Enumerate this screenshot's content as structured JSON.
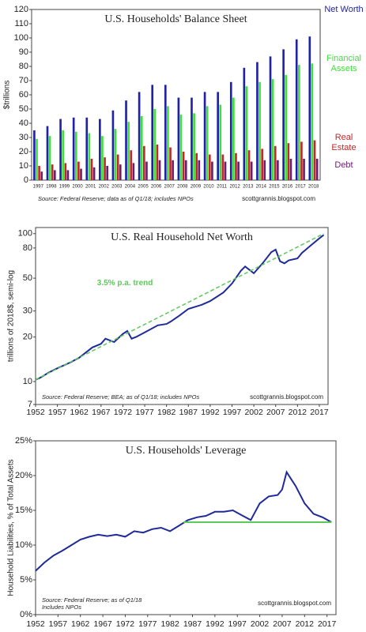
{
  "chart_data": [
    {
      "type": "bar",
      "title": "U.S. Households' Balance Sheet",
      "y_label": "$trillions",
      "source": "Source: Federal Reserve; data as of Q1/18; includes NPOs",
      "credit": "scottgrannis.blogspot.com",
      "categories": [
        "1997",
        "1998",
        "1999",
        "2000",
        "2001",
        "2002",
        "2003",
        "2004",
        "2005",
        "2006",
        "2007",
        "2008",
        "2009",
        "2010",
        "2011",
        "2012",
        "2013",
        "2014",
        "2015",
        "2016",
        "2017",
        "2018"
      ],
      "series": [
        {
          "name": "Net Worth",
          "color": "#1f22a8",
          "values": [
            35,
            38,
            43,
            44,
            44,
            43,
            49,
            56,
            62,
            67,
            67,
            58,
            58,
            62,
            62,
            69,
            79,
            83,
            87,
            92,
            99,
            101
          ]
        },
        {
          "name": "Financial Assets",
          "color": "#3ee03a",
          "values": [
            29,
            31,
            35,
            34,
            33,
            31,
            36,
            41,
            45,
            50,
            52,
            46,
            47,
            52,
            53,
            58,
            66,
            69,
            71,
            74,
            81,
            82
          ]
        },
        {
          "name": "Real Estate",
          "color": "#c0282a",
          "values": [
            10,
            11,
            12,
            13,
            15,
            16,
            18,
            21,
            24,
            25,
            23,
            20,
            19,
            18,
            18,
            19,
            21,
            22,
            24,
            26,
            27,
            28
          ]
        },
        {
          "name": "Debt",
          "color": "#6a1f6e",
          "values": [
            6,
            7,
            7,
            8,
            9,
            10,
            11,
            12,
            13,
            14,
            14,
            14,
            14,
            13,
            13,
            13,
            13,
            14,
            14,
            15,
            15,
            15
          ]
        }
      ],
      "legend": "right",
      "ylim": [
        0,
        120
      ],
      "yticks": [
        0,
        10,
        20,
        30,
        40,
        50,
        60,
        70,
        80,
        90,
        100,
        110,
        120
      ]
    },
    {
      "type": "line",
      "title": "U.S. Real Household Net Worth",
      "y_label": "trillions of 2018$, semi-log",
      "source": "Source: Federal Reserve; BEA; as of Q1/18; includes NPOs",
      "credit": "scottgrannis.blogspot.com",
      "yscale": "log",
      "xlim": [
        1952,
        2019
      ],
      "ylim": [
        7,
        110
      ],
      "xticks": [
        1952,
        1957,
        1962,
        1967,
        1972,
        1977,
        1982,
        1987,
        1992,
        1997,
        2002,
        2007,
        2012,
        2017
      ],
      "yticks": [
        7,
        10,
        20,
        30,
        50,
        80,
        100
      ],
      "series": [
        {
          "color": "#1f2a9a",
          "x": [
            1952,
            1953,
            1955,
            1957,
            1960,
            1962,
            1965,
            1967,
            1968,
            1970,
            1972,
            1973,
            1974,
            1975,
            1977,
            1980,
            1982,
            1983,
            1985,
            1987,
            1990,
            1992,
            1995,
            1997,
            1999,
            2000,
            2002,
            2004,
            2006,
            2007,
            2008,
            2009,
            2010,
            2012,
            2013,
            2015,
            2017,
            2018
          ],
          "values": [
            10.3,
            10.6,
            11.5,
            12.3,
            13.5,
            14.5,
            17,
            18,
            19.5,
            18.5,
            21,
            22,
            19.5,
            20,
            21.5,
            24,
            24.5,
            25.5,
            28,
            31,
            33,
            35,
            40,
            46,
            56,
            60,
            54,
            63,
            75,
            78,
            65,
            63,
            66,
            68,
            74,
            83,
            93,
            98
          ]
        },
        {
          "name": "3.5% p.a. trend",
          "color": "#5fc85a",
          "dashed": true,
          "x": [
            1952,
            2018
          ],
          "values": [
            10.3,
            100
          ]
        }
      ]
    },
    {
      "type": "line",
      "title": "U.S. Households' Leverage",
      "y_label": "Household Liabilities, % of Total Assets",
      "source": "Source: Federal Reserve; as of Q1/18",
      "source2": "Includes NPOs",
      "credit": "scottgrannis.blogspot.com",
      "xlim": [
        1952,
        2019
      ],
      "ylim": [
        0,
        25
      ],
      "xticks": [
        1952,
        1957,
        1962,
        1967,
        1972,
        1977,
        1982,
        1987,
        1992,
        1997,
        2002,
        2007,
        2012,
        2017
      ],
      "yticks": [
        {
          "value": 0,
          "label": "0%"
        },
        {
          "value": 5,
          "label": "5%"
        },
        {
          "value": 10,
          "label": "10%"
        },
        {
          "value": 15,
          "label": "15%"
        },
        {
          "value": 20,
          "label": "20%"
        },
        {
          "value": 25,
          "label": "25%"
        }
      ],
      "series": [
        {
          "color": "#1f2a9a",
          "x": [
            1952,
            1954,
            1956,
            1958,
            1960,
            1962,
            1964,
            1966,
            1968,
            1970,
            1972,
            1974,
            1976,
            1978,
            1980,
            1982,
            1984,
            1986,
            1988,
            1990,
            1992,
            1994,
            1996,
            1998,
            2000,
            2002,
            2004,
            2006,
            2007,
            2008,
            2009,
            2010,
            2012,
            2014,
            2016,
            2018
          ],
          "values": [
            6.3,
            7.5,
            8.5,
            9.2,
            10,
            10.8,
            11.2,
            11.5,
            11.3,
            11.5,
            11.2,
            12,
            11.8,
            12.3,
            12.5,
            12,
            12.8,
            13.6,
            14,
            14.2,
            14.8,
            14.8,
            15,
            14.3,
            13.6,
            16,
            17,
            17.2,
            18,
            20.5,
            19.5,
            18.5,
            16,
            14.5,
            14,
            13.3
          ]
        },
        {
          "color": "#5fc85a",
          "x": [
            1985,
            2018
          ],
          "values": [
            13.3,
            13.3
          ]
        }
      ]
    }
  ]
}
